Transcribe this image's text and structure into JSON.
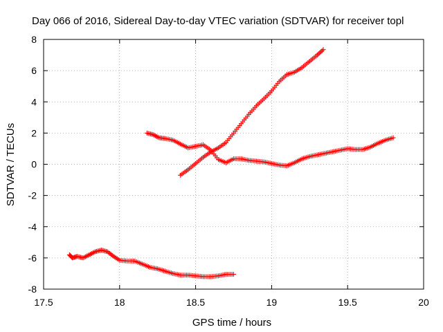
{
  "chart_data": {
    "type": "scatter",
    "title": "Day 066 of 2016, Sidereal Day-to-day VTEC variation (SDTVAR) for receiver topl",
    "xlabel": "GPS time / hours",
    "ylabel": "SDTVAR / TECUs",
    "xlim": [
      17.5,
      20
    ],
    "ylim": [
      -8,
      8
    ],
    "xticks": [
      "17.5",
      "18",
      "18.5",
      "19",
      "19.5",
      "20"
    ],
    "yticks": [
      "-8",
      "-6",
      "-4",
      "-2",
      "0",
      "2",
      "4",
      "6",
      "8"
    ],
    "grid": true,
    "marker": "+",
    "marker_color": "#ff0000",
    "series": [
      {
        "points": [
          [
            17.67,
            -5.8
          ],
          [
            17.69,
            -6.0
          ],
          [
            17.72,
            -5.9
          ],
          [
            17.76,
            -6.0
          ],
          [
            17.8,
            -5.8
          ],
          [
            17.84,
            -5.6
          ],
          [
            17.88,
            -5.5
          ],
          [
            17.92,
            -5.6
          ],
          [
            17.96,
            -5.9
          ],
          [
            18.0,
            -6.15
          ],
          [
            18.05,
            -6.2
          ],
          [
            18.1,
            -6.2
          ],
          [
            18.15,
            -6.4
          ],
          [
            18.2,
            -6.6
          ],
          [
            18.25,
            -6.7
          ],
          [
            18.3,
            -6.85
          ],
          [
            18.35,
            -7.0
          ],
          [
            18.4,
            -7.1
          ],
          [
            18.45,
            -7.1
          ],
          [
            18.5,
            -7.15
          ],
          [
            18.55,
            -7.2
          ],
          [
            18.6,
            -7.2
          ],
          [
            18.65,
            -7.15
          ],
          [
            18.7,
            -7.05
          ],
          [
            18.75,
            -7.05
          ]
        ]
      },
      {
        "points": [
          [
            18.18,
            2.0
          ],
          [
            18.22,
            1.9
          ],
          [
            18.26,
            1.7
          ],
          [
            18.3,
            1.65
          ],
          [
            18.35,
            1.55
          ],
          [
            18.4,
            1.3
          ],
          [
            18.45,
            1.05
          ],
          [
            18.5,
            1.15
          ],
          [
            18.55,
            1.25
          ],
          [
            18.6,
            0.9
          ],
          [
            18.65,
            0.3
          ],
          [
            18.7,
            0.1
          ],
          [
            18.75,
            0.35
          ],
          [
            18.8,
            0.35
          ],
          [
            18.85,
            0.25
          ],
          [
            18.9,
            0.2
          ],
          [
            18.95,
            0.15
          ],
          [
            19.0,
            0.05
          ],
          [
            19.05,
            -0.05
          ],
          [
            19.1,
            -0.1
          ],
          [
            19.15,
            0.1
          ],
          [
            19.2,
            0.35
          ],
          [
            19.25,
            0.5
          ],
          [
            19.3,
            0.6
          ],
          [
            19.35,
            0.7
          ],
          [
            19.4,
            0.8
          ],
          [
            19.45,
            0.9
          ],
          [
            19.5,
            1.0
          ],
          [
            19.55,
            0.95
          ],
          [
            19.6,
            0.95
          ],
          [
            19.65,
            1.1
          ],
          [
            19.7,
            1.35
          ],
          [
            19.75,
            1.55
          ],
          [
            19.8,
            1.7
          ]
        ]
      },
      {
        "points": [
          [
            18.4,
            -0.7
          ],
          [
            18.45,
            -0.35
          ],
          [
            18.5,
            0.05
          ],
          [
            18.55,
            0.45
          ],
          [
            18.6,
            0.8
          ],
          [
            18.65,
            1.05
          ],
          [
            18.7,
            1.4
          ],
          [
            18.75,
            2.0
          ],
          [
            18.8,
            2.6
          ],
          [
            18.85,
            3.2
          ],
          [
            18.9,
            3.75
          ],
          [
            18.95,
            4.2
          ],
          [
            19.0,
            4.7
          ],
          [
            19.05,
            5.3
          ],
          [
            19.1,
            5.75
          ],
          [
            19.15,
            5.9
          ],
          [
            19.2,
            6.2
          ],
          [
            19.25,
            6.6
          ],
          [
            19.3,
            7.0
          ],
          [
            19.34,
            7.35
          ]
        ]
      }
    ]
  }
}
